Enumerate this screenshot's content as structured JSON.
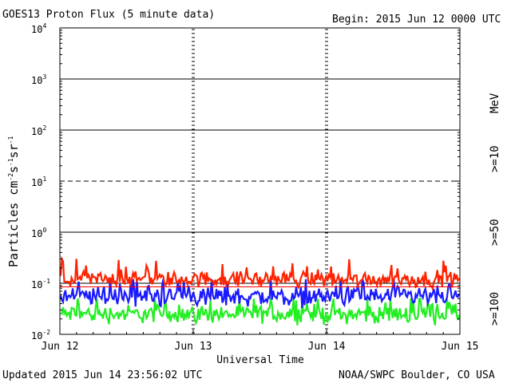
{
  "header": {
    "title": "GOES13 Proton Flux (5 minute data)",
    "begin": "Begin: 2015 Jun 12 0000 UTC"
  },
  "footer": {
    "updated": "Updated 2015 Jun 14 23:56:02 UTC",
    "credit": "NOAA/SWPC Boulder, CO USA"
  },
  "legend": {
    "unit": "MeV",
    "entries": [
      ">=10",
      ">=50",
      ">=100"
    ]
  },
  "colors": {
    "ge10": "#ff2200",
    "ge50": "#1a1aff",
    "ge100": "#22ee22",
    "threshold": "#ff0000",
    "axis": "#000000",
    "background": "#ffffff"
  },
  "chart_data": {
    "type": "line",
    "title": "GOES13 Proton Flux (5 minute data)",
    "xlabel": "Universal Time",
    "ylabel": "Particles cm-2s-1sr-1",
    "yscale": "log",
    "ylim": [
      0.01,
      10000
    ],
    "xlim": [
      "2015-06-12",
      "2015-06-15"
    ],
    "x_ticks": [
      "Jun 12",
      "Jun 13",
      "Jun 14",
      "Jun 15"
    ],
    "y_tick_mantissa": "10",
    "y_tick_exponents": [
      "4",
      "3",
      "2",
      "1",
      "0",
      "-1",
      "-2"
    ],
    "y_ticks": [
      10000,
      1000,
      100,
      10,
      1,
      0.1,
      0.01
    ],
    "grid": "horizontal at decades (dashed at 10), vertical day markers",
    "threshold": 10,
    "series": [
      {
        "name": ">=10",
        "typical_range": [
          0.07,
          0.3
        ],
        "median": 0.12
      },
      {
        "name": ">=50",
        "typical_range": [
          0.03,
          0.12
        ],
        "median": 0.055
      },
      {
        "name": ">=100",
        "typical_range": [
          0.015,
          0.05
        ],
        "median": 0.025
      }
    ]
  }
}
